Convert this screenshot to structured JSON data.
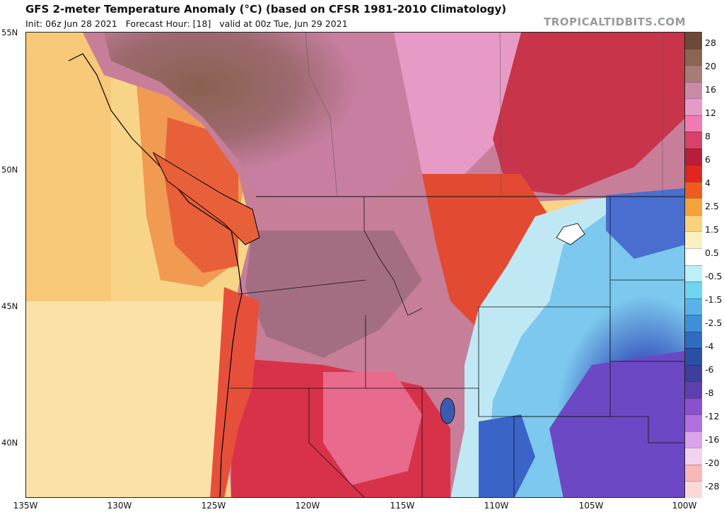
{
  "header": {
    "title": "GFS 2-meter Temperature Anomaly (°C) (based on CFSR 1981-2010 Climatology)",
    "init": "Init: 06z Jun 28 2021",
    "forecast_hour": "Forecast Hour: [18]",
    "valid": "valid at 00z Tue, Jun 29 2021",
    "brand": "TROPICALTIDBITS.COM"
  },
  "axes": {
    "lat_labels": [
      "55N",
      "50N",
      "45N",
      "40N"
    ],
    "lon_labels": [
      "135W",
      "130W",
      "125W",
      "120W",
      "115W",
      "110W",
      "105W",
      "100W"
    ]
  },
  "colorbar": {
    "labels": [
      "28",
      "20",
      "16",
      "12",
      "8",
      "6",
      "4",
      "2.5",
      "1.5",
      "0.5",
      "-0.5",
      "-1.5",
      "-2.5",
      "-4",
      "-6",
      "-8",
      "-12",
      "-16",
      "-20",
      "-28"
    ],
    "colors": [
      "#6b4a3a",
      "#8a6552",
      "#a57d74",
      "#c98aa8",
      "#e69ac8",
      "#f07ab2",
      "#d9406a",
      "#b81e3a",
      "#e0261f",
      "#f05a1e",
      "#f5a23a",
      "#f9d27a",
      "#fbf0c0",
      "#ffffff",
      "#bdeff5",
      "#6ed4ef",
      "#58b3e8",
      "#3f8fd8",
      "#2f6cc0",
      "#2a4fa6",
      "#3d3f9c",
      "#5e3fb0",
      "#8a50d0",
      "#b070e0",
      "#d9a4ec",
      "#f3d2ee",
      "#f8b8b8",
      "#fbd9d4"
    ]
  },
  "map": {
    "ocean_color": "#f8dca0",
    "cold_color": "#4a64c8",
    "hot_color": "#8a6552"
  }
}
